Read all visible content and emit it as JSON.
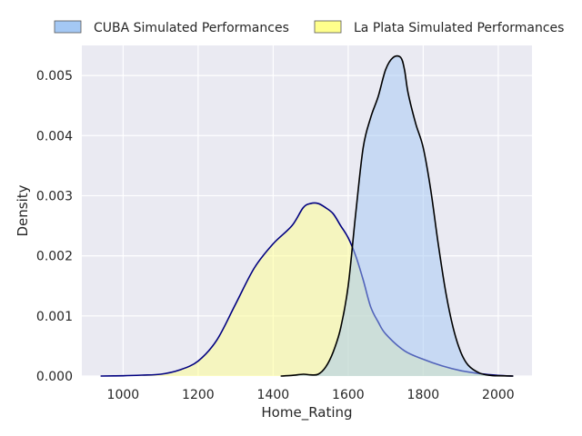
{
  "chart_data": {
    "type": "area",
    "title": "",
    "xlabel": "Home_Rating",
    "ylabel": "Density",
    "xlim": [
      890,
      2090
    ],
    "ylim": [
      0,
      0.0055
    ],
    "grid": true,
    "legend_position": "top",
    "x_ticks": [
      1000,
      1200,
      1400,
      1600,
      1800,
      2000
    ],
    "x_tick_labels": [
      "1000",
      "1200",
      "1400",
      "1600",
      "1800",
      "2000"
    ],
    "y_ticks": [
      0,
      0.001,
      0.002,
      0.003,
      0.004,
      0.005
    ],
    "y_tick_labels": [
      "0.000",
      "0.001",
      "0.002",
      "0.003",
      "0.004",
      "0.005"
    ],
    "series": [
      {
        "name": "CUBA Simulated Performances",
        "fill_color": "#a4c8f4",
        "line_color": "#000000",
        "x": [
          1420,
          1450,
          1480,
          1500,
          1520,
          1540,
          1560,
          1580,
          1600,
          1620,
          1640,
          1660,
          1680,
          1700,
          1720,
          1740,
          1750,
          1760,
          1780,
          1800,
          1820,
          1840,
          1860,
          1880,
          1900,
          1920,
          1950,
          1980,
          2000,
          2040
        ],
        "y": [
          0,
          1e-05,
          3e-05,
          2e-05,
          3e-05,
          0.00015,
          0.0004,
          0.0008,
          0.0015,
          0.0027,
          0.0038,
          0.0043,
          0.00465,
          0.0051,
          0.0053,
          0.0053,
          0.0051,
          0.0047,
          0.0042,
          0.0038,
          0.0031,
          0.0022,
          0.0014,
          0.0008,
          0.0004,
          0.00018,
          5e-05,
          1e-05,
          5e-06,
          0
        ]
      },
      {
        "name": "La Plata Simulated Performances",
        "fill_color": "#ffff8c",
        "line_color": "#000080",
        "x": [
          940,
          1000,
          1050,
          1100,
          1150,
          1200,
          1250,
          1300,
          1350,
          1400,
          1450,
          1480,
          1500,
          1520,
          1540,
          1560,
          1580,
          1600,
          1620,
          1640,
          1660,
          1680,
          1700,
          1750,
          1800,
          1850,
          1900,
          1950,
          2000,
          2040
        ],
        "y": [
          0,
          5e-06,
          1.5e-05,
          3e-05,
          0.0001,
          0.00025,
          0.0006,
          0.0012,
          0.0018,
          0.0022,
          0.0025,
          0.0028,
          0.00287,
          0.00287,
          0.0028,
          0.0027,
          0.0025,
          0.0023,
          0.002,
          0.0016,
          0.00115,
          0.0009,
          0.0007,
          0.00042,
          0.00028,
          0.00017,
          9e-05,
          4e-05,
          1e-05,
          0
        ]
      }
    ]
  }
}
